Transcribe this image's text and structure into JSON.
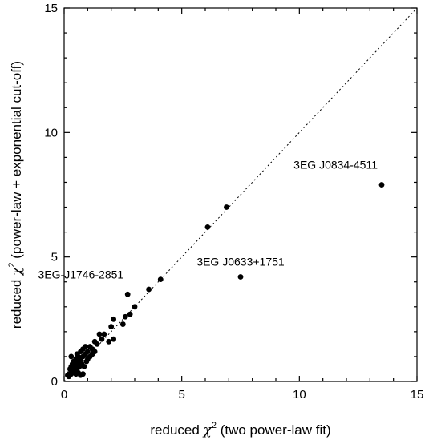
{
  "chart_data": {
    "type": "scatter",
    "title": "",
    "xlabel": "reduced χ² (two power-law fit)",
    "ylabel": "reduced χ² (power-law + exponential cut-off)",
    "xlabel_parts": {
      "prefix": "reduced ",
      "chi": "χ",
      "sup": "2",
      "suffix": " (two power-law fit)"
    },
    "ylabel_parts": {
      "prefix": "reduced ",
      "chi": "χ",
      "sup": "2",
      "suffix": " (power-law + exponential cut-off)"
    },
    "xlim": [
      0,
      15
    ],
    "ylim": [
      0,
      15
    ],
    "x_ticks": [
      0,
      5,
      10,
      15
    ],
    "y_ticks": [
      0,
      5,
      10,
      15
    ],
    "x_tick_labels": [
      "0",
      "5",
      "10",
      "15"
    ],
    "y_tick_labels": [
      "0",
      "5",
      "10",
      "15"
    ],
    "grid": false,
    "reference_line": "y = x (dotted)",
    "annotations": [
      {
        "text": "3EG J0834-4511",
        "x": 13.5,
        "y": 7.9
      },
      {
        "text": "3EG J0633+1751",
        "x": 7.5,
        "y": 4.2
      },
      {
        "text": "3EG-J1746-2851",
        "x": 2.7,
        "y": 3.5
      }
    ],
    "points": [
      [
        13.5,
        7.9
      ],
      [
        7.5,
        4.2
      ],
      [
        6.9,
        7.0
      ],
      [
        6.1,
        6.2
      ],
      [
        4.1,
        4.1
      ],
      [
        3.6,
        3.7
      ],
      [
        3.0,
        3.0
      ],
      [
        2.7,
        3.5
      ],
      [
        2.8,
        2.7
      ],
      [
        2.6,
        2.6
      ],
      [
        2.5,
        2.3
      ],
      [
        2.1,
        2.5
      ],
      [
        2.0,
        2.2
      ],
      [
        2.1,
        1.7
      ],
      [
        1.9,
        1.6
      ],
      [
        1.7,
        1.9
      ],
      [
        1.6,
        1.7
      ],
      [
        1.5,
        1.9
      ],
      [
        1.4,
        1.5
      ],
      [
        1.3,
        1.6
      ],
      [
        1.2,
        1.3
      ],
      [
        1.1,
        1.4
      ],
      [
        1.0,
        1.2
      ],
      [
        1.1,
        1.0
      ],
      [
        0.9,
        1.4
      ],
      [
        0.9,
        1.1
      ],
      [
        0.95,
        0.8
      ],
      [
        0.8,
        1.3
      ],
      [
        0.8,
        1.0
      ],
      [
        0.75,
        0.7
      ],
      [
        0.7,
        1.2
      ],
      [
        0.7,
        0.9
      ],
      [
        0.65,
        0.6
      ],
      [
        0.6,
        1.0
      ],
      [
        0.6,
        0.8
      ],
      [
        0.55,
        0.5
      ],
      [
        0.5,
        0.9
      ],
      [
        0.5,
        0.7
      ],
      [
        0.45,
        0.6
      ],
      [
        0.4,
        0.8
      ],
      [
        0.4,
        0.5
      ],
      [
        0.35,
        0.4
      ],
      [
        0.3,
        0.6
      ],
      [
        0.3,
        1.0
      ],
      [
        0.3,
        0.3
      ],
      [
        0.25,
        0.5
      ],
      [
        0.2,
        0.3
      ],
      [
        0.2,
        0.2
      ],
      [
        0.15,
        0.25
      ],
      [
        0.5,
        0.3
      ],
      [
        0.6,
        0.35
      ],
      [
        0.7,
        0.25
      ],
      [
        0.8,
        0.3
      ],
      [
        0.85,
        0.6
      ],
      [
        1.0,
        0.9
      ],
      [
        1.2,
        1.1
      ],
      [
        1.3,
        1.2
      ],
      [
        0.55,
        1.1
      ],
      [
        0.45,
        0.45
      ],
      [
        0.35,
        0.7
      ]
    ]
  }
}
